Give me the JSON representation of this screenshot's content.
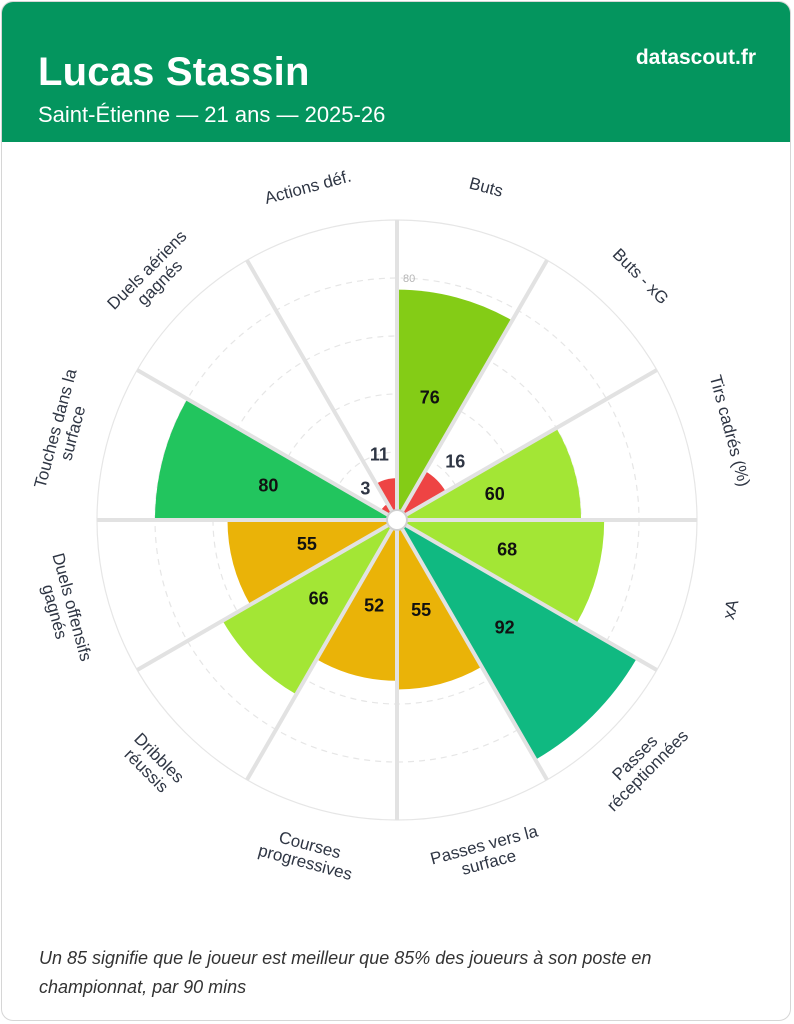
{
  "header": {
    "player_name": "Lucas Stassin",
    "subtitle": "Saint-Étienne — 21 ans — 2025-26",
    "brand": "datascout.fr"
  },
  "footnote": "Un 85 signifie que le joueur est meilleur que 85% des joueurs à son poste en championnat, par 90 mins",
  "chart_data": {
    "type": "radar",
    "scale_max": 100,
    "ring_values": [
      20,
      40,
      60,
      80,
      100
    ],
    "ring_labels_shown": [
      "80"
    ],
    "start": "top",
    "direction": "clockwise",
    "colors": {
      "very_low": "#ee4444",
      "medium": "#eab308",
      "good": "#a3e635",
      "high": "#84cc16",
      "very_high": "#22c55e",
      "elite": "#10b981"
    },
    "metrics": [
      {
        "label": [
          "Buts"
        ],
        "value": 76,
        "color": "#84cc16"
      },
      {
        "label": [
          "Buts - xG"
        ],
        "value": 16,
        "color": "#ee4444"
      },
      {
        "label": [
          "Tirs cadrés (%)"
        ],
        "value": 60,
        "color": "#a3e635"
      },
      {
        "label": [
          "xA"
        ],
        "value": 68,
        "color": "#a3e635"
      },
      {
        "label": [
          "Passes",
          "réceptionnées"
        ],
        "value": 92,
        "color": "#10b981"
      },
      {
        "label": [
          "Passes vers la",
          "surface"
        ],
        "value": 55,
        "color": "#eab308"
      },
      {
        "label": [
          "Courses",
          "progressives"
        ],
        "value": 52,
        "color": "#eab308"
      },
      {
        "label": [
          "Dribbles",
          "réussis"
        ],
        "value": 66,
        "color": "#a3e635"
      },
      {
        "label": [
          "Duels offensifs",
          "gagnés"
        ],
        "value": 55,
        "color": "#eab308"
      },
      {
        "label": [
          "Touches dans la",
          "surface"
        ],
        "value": 80,
        "color": "#22c55e"
      },
      {
        "label": [
          "Duels aériens",
          "gagnés"
        ],
        "value": 3,
        "color": "#ee4444"
      },
      {
        "label": [
          "Actions déf."
        ],
        "value": 11,
        "color": "#ee4444"
      }
    ]
  }
}
